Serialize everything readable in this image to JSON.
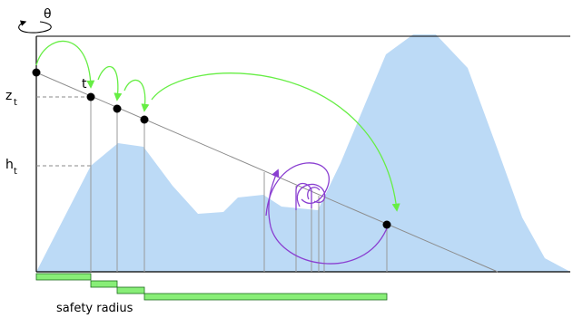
{
  "labels": {
    "theta": "θ",
    "z_t": "z",
    "z_t_sub": "t",
    "h_t": "h",
    "h_t_sub": "t",
    "t": "t",
    "safety_radius": "safety radius"
  },
  "colors": {
    "terrain": "#bcdaf6",
    "frame": "#000000",
    "ray": "#8c8c8c",
    "green_arrow": "#66ee44",
    "purple_arrow": "#8a3fd1",
    "safety_bar_fill": "#88ee77",
    "safety_bar_stroke": "#1b6b1b",
    "dashed": "#888888",
    "point": "#000000"
  },
  "icons": {
    "rotation": "rotation-arrow-icon"
  }
}
